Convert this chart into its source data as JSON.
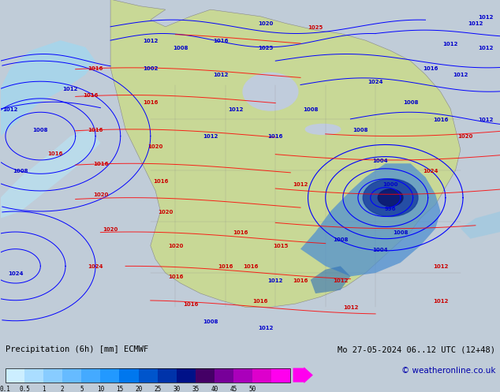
{
  "title_left": "Precipitation (6h) [mm] ECMWF",
  "title_right": "Mo 27-05-2024 06..12 UTC (12+48)",
  "copyright": "© weatheronline.co.uk",
  "colorbar_tick_labels": [
    "0.1",
    "0.5",
    "1",
    "2",
    "5",
    "10",
    "15",
    "20",
    "25",
    "30",
    "35",
    "40",
    "45",
    "50"
  ],
  "colorbar_colors": [
    "#cceeff",
    "#aaddff",
    "#88ccff",
    "#66bbff",
    "#44aaff",
    "#2299ff",
    "#0077ee",
    "#0055cc",
    "#0033aa",
    "#001188",
    "#440066",
    "#770099",
    "#aa00bb",
    "#dd00cc",
    "#ff00ee"
  ],
  "fig_bg": "#c0ccd8",
  "bottom_bg": "#d0d0d0",
  "land_color": "#c8d896",
  "ocean_color": "#c0ccdc",
  "fig_width": 6.34,
  "fig_height": 4.9,
  "dpi": 100
}
